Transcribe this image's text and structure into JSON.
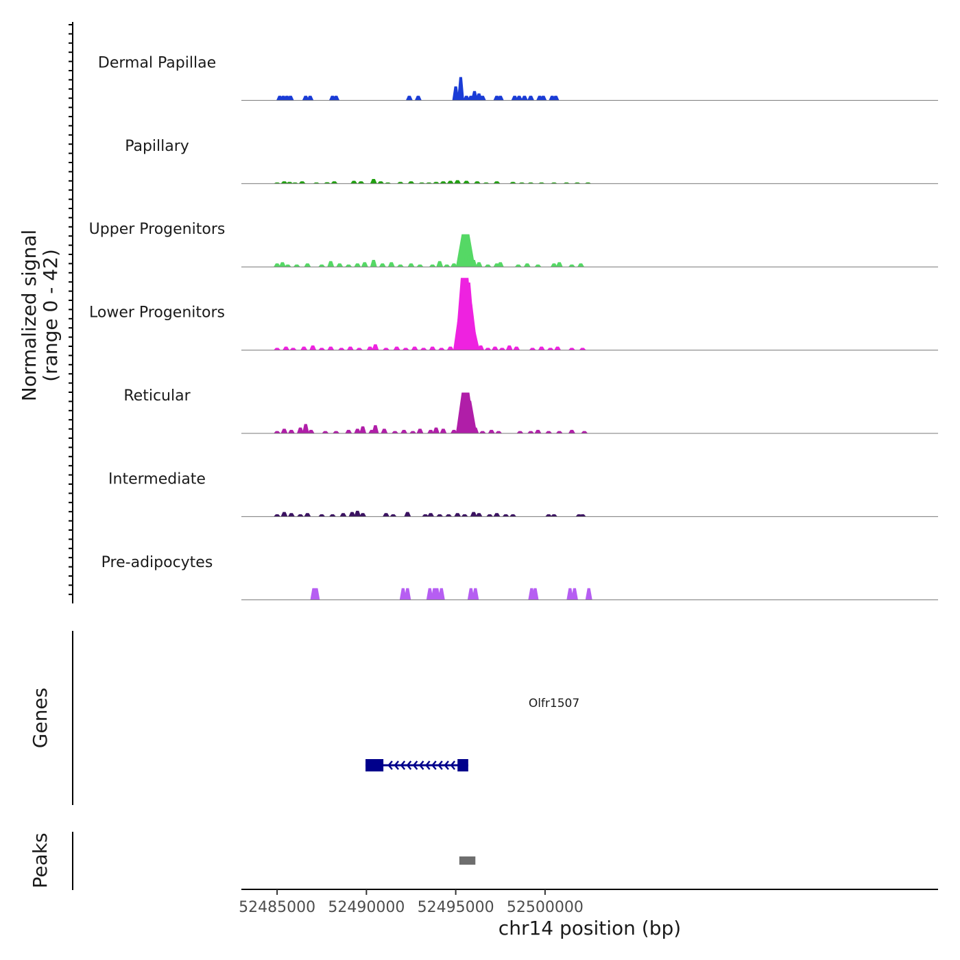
{
  "chart_data": {
    "type": "area",
    "title": "",
    "ylabel_line1": "Normalized signal",
    "ylabel_line2": "(range 0 - 42)",
    "signal_range": [
      0,
      42
    ],
    "xlabel": "chr14 position (bp)",
    "xlim": [
      52483000,
      52522000
    ],
    "x_ticks": [
      52485000,
      52490000,
      52495000,
      52500000
    ],
    "x_tick_labels": [
      "52485000",
      "52490000",
      "52495000",
      "52500000"
    ],
    "tracks": [
      {
        "name": "Dermal Papillae",
        "color": "#1a3cd6",
        "bins": [
          [
            52485150,
            4
          ],
          [
            52485350,
            4
          ],
          [
            52485550,
            4
          ],
          [
            52485750,
            4
          ],
          [
            52486600,
            4
          ],
          [
            52486850,
            4
          ],
          [
            52488100,
            4
          ],
          [
            52488300,
            4
          ],
          [
            52492400,
            4
          ],
          [
            52492900,
            4
          ],
          [
            52495000,
            12
          ],
          [
            52495280,
            20
          ],
          [
            52495600,
            4
          ],
          [
            52495850,
            4
          ],
          [
            52496050,
            8
          ],
          [
            52496300,
            6
          ],
          [
            52496500,
            4
          ],
          [
            52497300,
            4
          ],
          [
            52497500,
            4
          ],
          [
            52498300,
            4
          ],
          [
            52498550,
            4
          ],
          [
            52498850,
            4
          ],
          [
            52499200,
            4
          ],
          [
            52499700,
            4
          ],
          [
            52499900,
            4
          ],
          [
            52500400,
            4
          ],
          [
            52500600,
            4
          ]
        ]
      },
      {
        "name": "Papillary",
        "color": "#20a010",
        "bins": [
          [
            52485000,
            1
          ],
          [
            52485400,
            2
          ],
          [
            52485700,
            1.5
          ],
          [
            52486000,
            1
          ],
          [
            52486400,
            2
          ],
          [
            52487200,
            1
          ],
          [
            52487800,
            1.2
          ],
          [
            52488200,
            2
          ],
          [
            52489300,
            2.5
          ],
          [
            52489700,
            2
          ],
          [
            52490400,
            4
          ],
          [
            52490800,
            2
          ],
          [
            52491200,
            1
          ],
          [
            52491900,
            1.5
          ],
          [
            52492500,
            2
          ],
          [
            52493100,
            1
          ],
          [
            52493500,
            1
          ],
          [
            52493900,
            1.5
          ],
          [
            52494300,
            2
          ],
          [
            52494700,
            2.5
          ],
          [
            52495100,
            3
          ],
          [
            52495600,
            2.5
          ],
          [
            52496200,
            2
          ],
          [
            52496700,
            1
          ],
          [
            52497300,
            2
          ],
          [
            52498200,
            1.5
          ],
          [
            52498700,
            1
          ],
          [
            52499200,
            1
          ],
          [
            52499800,
            1
          ],
          [
            52500500,
            1
          ],
          [
            52501200,
            1
          ],
          [
            52501800,
            1
          ],
          [
            52502400,
            1
          ]
        ]
      },
      {
        "name": "Upper Progenitors",
        "color": "#55d865",
        "bins": [
          [
            52485000,
            3
          ],
          [
            52485300,
            4
          ],
          [
            52485600,
            2
          ],
          [
            52486100,
            2
          ],
          [
            52486700,
            3
          ],
          [
            52487500,
            2
          ],
          [
            52488000,
            5
          ],
          [
            52488500,
            3
          ],
          [
            52489000,
            2
          ],
          [
            52489500,
            3
          ],
          [
            52489900,
            4
          ],
          [
            52490400,
            6
          ],
          [
            52490900,
            3
          ],
          [
            52491400,
            4
          ],
          [
            52491900,
            2
          ],
          [
            52492500,
            3
          ],
          [
            52493000,
            2
          ],
          [
            52493700,
            2
          ],
          [
            52494100,
            5
          ],
          [
            52494500,
            2
          ],
          [
            52494900,
            3
          ],
          [
            52495300,
            7
          ],
          [
            52495450,
            15
          ],
          [
            52495550,
            28
          ],
          [
            52495650,
            20
          ],
          [
            52495750,
            10
          ],
          [
            52496000,
            6
          ],
          [
            52496300,
            4
          ],
          [
            52496800,
            2
          ],
          [
            52497300,
            3
          ],
          [
            52497500,
            4
          ],
          [
            52498500,
            2
          ],
          [
            52499000,
            3
          ],
          [
            52499600,
            2
          ],
          [
            52500500,
            3
          ],
          [
            52500800,
            4
          ],
          [
            52501500,
            2
          ],
          [
            52502000,
            3
          ]
        ]
      },
      {
        "name": "Lower Progenitors",
        "color": "#ee22e0",
        "bins": [
          [
            52485000,
            2
          ],
          [
            52485500,
            3
          ],
          [
            52485900,
            2
          ],
          [
            52486500,
            3
          ],
          [
            52487000,
            4
          ],
          [
            52487500,
            2
          ],
          [
            52488000,
            3
          ],
          [
            52488600,
            2
          ],
          [
            52489100,
            3
          ],
          [
            52489600,
            2
          ],
          [
            52490200,
            3
          ],
          [
            52490500,
            5
          ],
          [
            52491100,
            2
          ],
          [
            52491700,
            3
          ],
          [
            52492200,
            2
          ],
          [
            52492700,
            3
          ],
          [
            52493200,
            2
          ],
          [
            52493700,
            3
          ],
          [
            52494200,
            2
          ],
          [
            52494700,
            3
          ],
          [
            52495100,
            10
          ],
          [
            52495250,
            16
          ],
          [
            52495400,
            35
          ],
          [
            52495500,
            62
          ],
          [
            52495600,
            58
          ],
          [
            52495700,
            40
          ],
          [
            52495800,
            22
          ],
          [
            52495950,
            12
          ],
          [
            52496150,
            7
          ],
          [
            52496400,
            4
          ],
          [
            52496800,
            2
          ],
          [
            52497200,
            3
          ],
          [
            52497600,
            2
          ],
          [
            52498000,
            4
          ],
          [
            52498400,
            3
          ],
          [
            52499300,
            2
          ],
          [
            52499800,
            3
          ],
          [
            52500300,
            2
          ],
          [
            52500700,
            3
          ],
          [
            52501500,
            2
          ],
          [
            52502100,
            2
          ]
        ]
      },
      {
        "name": "Reticular",
        "color": "#b01ea8",
        "bins": [
          [
            52485000,
            2
          ],
          [
            52485400,
            4
          ],
          [
            52485800,
            3
          ],
          [
            52486300,
            5
          ],
          [
            52486600,
            8
          ],
          [
            52486900,
            3
          ],
          [
            52487700,
            2
          ],
          [
            52488300,
            2
          ],
          [
            52489000,
            3
          ],
          [
            52489500,
            4
          ],
          [
            52489800,
            6
          ],
          [
            52490300,
            3
          ],
          [
            52490500,
            7
          ],
          [
            52491000,
            4
          ],
          [
            52491600,
            2
          ],
          [
            52492100,
            3
          ],
          [
            52492600,
            2
          ],
          [
            52493000,
            4
          ],
          [
            52493600,
            3
          ],
          [
            52493900,
            5
          ],
          [
            52494300,
            4
          ],
          [
            52494900,
            3
          ],
          [
            52495200,
            10
          ],
          [
            52495400,
            18
          ],
          [
            52495550,
            35
          ],
          [
            52495650,
            28
          ],
          [
            52495750,
            18
          ],
          [
            52495900,
            10
          ],
          [
            52496100,
            5
          ],
          [
            52496500,
            2
          ],
          [
            52497000,
            3
          ],
          [
            52497400,
            2
          ],
          [
            52498600,
            2
          ],
          [
            52499200,
            2
          ],
          [
            52499600,
            3
          ],
          [
            52500200,
            2
          ],
          [
            52500800,
            2
          ],
          [
            52501500,
            3
          ],
          [
            52502200,
            2
          ]
        ]
      },
      {
        "name": "Intermediate",
        "color": "#3a1260",
        "bins": [
          [
            52485000,
            2
          ],
          [
            52485400,
            4
          ],
          [
            52485800,
            3
          ],
          [
            52486300,
            2
          ],
          [
            52486700,
            3
          ],
          [
            52487500,
            2
          ],
          [
            52488100,
            2
          ],
          [
            52488700,
            3
          ],
          [
            52489200,
            4
          ],
          [
            52489500,
            5
          ],
          [
            52489800,
            3
          ],
          [
            52491100,
            3
          ],
          [
            52491500,
            2
          ],
          [
            52492300,
            4
          ],
          [
            52493300,
            2
          ],
          [
            52493600,
            3
          ],
          [
            52494100,
            2
          ],
          [
            52494600,
            2
          ],
          [
            52495100,
            3
          ],
          [
            52495500,
            2
          ],
          [
            52496000,
            4
          ],
          [
            52496300,
            3
          ],
          [
            52496900,
            2
          ],
          [
            52497300,
            3
          ],
          [
            52497800,
            2
          ],
          [
            52498200,
            2
          ],
          [
            52500200,
            2
          ],
          [
            52500500,
            2
          ],
          [
            52501900,
            2
          ],
          [
            52502100,
            2
          ]
        ]
      },
      {
        "name": "Pre-adipocytes",
        "color": "#b65ef2",
        "bins": [
          [
            52487050,
            10
          ],
          [
            52487200,
            10
          ],
          [
            52492050,
            10
          ],
          [
            52492300,
            10
          ],
          [
            52493550,
            10
          ],
          [
            52493800,
            10
          ],
          [
            52493950,
            10
          ],
          [
            52494200,
            10
          ],
          [
            52495850,
            10
          ],
          [
            52496100,
            10
          ],
          [
            52499250,
            10
          ],
          [
            52499450,
            10
          ],
          [
            52501400,
            10
          ],
          [
            52501650,
            10
          ],
          [
            52502450,
            10
          ]
        ]
      }
    ],
    "genes_label": "Genes",
    "gene": {
      "name": "Olfr1507",
      "start": 52489950,
      "end": 52495700,
      "strand": "-",
      "exons": [
        [
          52489950,
          52490950
        ],
        [
          52495100,
          52495700
        ]
      ],
      "color": "#00008b"
    },
    "peaks_label": "Peaks",
    "peaks": [
      {
        "start": 52495200,
        "end": 52496100,
        "color": "#6e6e6e"
      }
    ]
  }
}
